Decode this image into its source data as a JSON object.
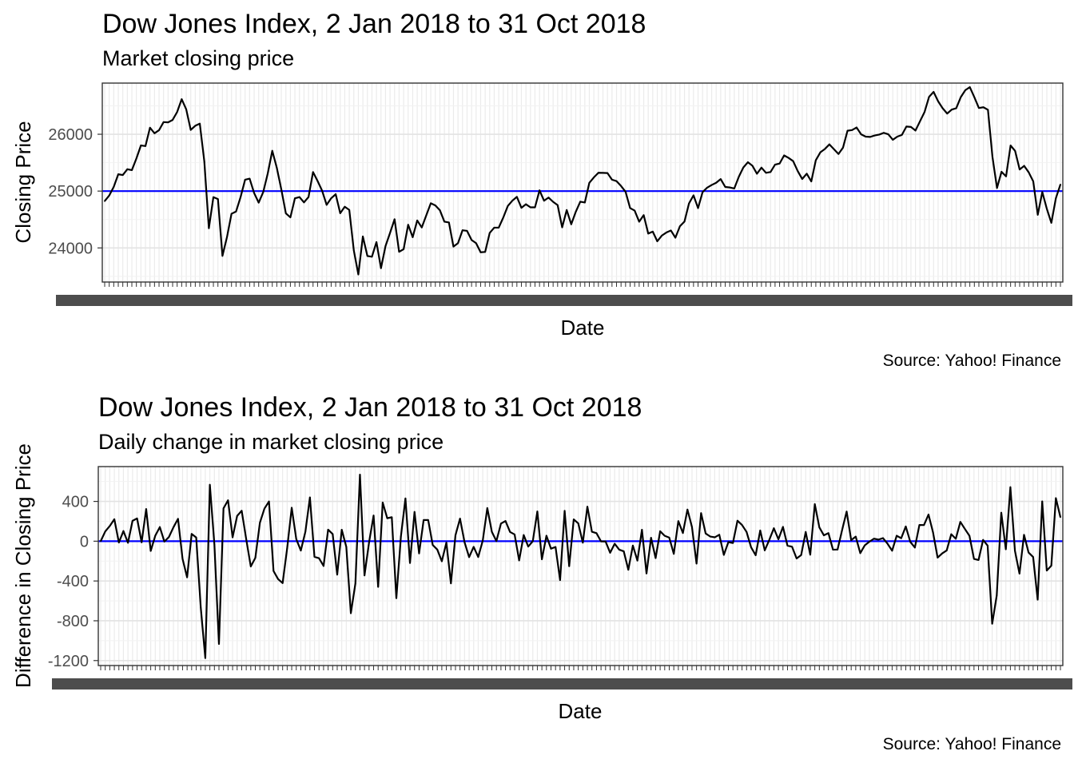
{
  "chart_data": [
    {
      "type": "line",
      "title": "Dow Jones Index, 2 Jan 2018 to 31 Oct 2018",
      "subtitle": "Market closing price",
      "xlabel": "Date",
      "ylabel": "Closing Price",
      "caption": "Source: Yahoo! Finance",
      "ylim": [
        23400,
        26900
      ],
      "yticks": [
        24000,
        25000,
        26000
      ],
      "reference_line": {
        "value": 25000,
        "color": "#0000ff"
      },
      "line_color": "#000000",
      "grid": true,
      "series": [
        {
          "values": [
            24824,
            24922,
            25075,
            25296,
            25283,
            25385,
            25369,
            25574,
            25803,
            25792,
            26115,
            26017,
            26072,
            26214,
            26210,
            26252,
            26392,
            26617,
            26439,
            26076,
            26149,
            26186,
            25520,
            24346,
            24893,
            24860,
            23860,
            24190,
            24601,
            24640,
            24894,
            25200,
            25219,
            24965,
            24797,
            24982,
            25310,
            25709,
            25410,
            25029,
            24608,
            24538,
            24874,
            24895,
            24801,
            24895,
            25335,
            25178,
            25007,
            24758,
            24874,
            24946,
            24610,
            24725,
            24668,
            23958,
            23533,
            24202,
            23858,
            23845,
            24103,
            23644,
            24033,
            24264,
            24505,
            23932,
            23978,
            24408,
            24189,
            24483,
            24360,
            24573,
            24786,
            24748,
            24664,
            24462,
            24448,
            24024,
            24084,
            24311,
            24300,
            24140,
            24083,
            23924,
            23930,
            24263,
            24357,
            24358,
            24535,
            24738,
            24831,
            24899,
            24706,
            24768,
            24714,
            24714,
            25013,
            24831,
            24886,
            24811,
            24753,
            24362,
            24667,
            24416,
            24635,
            24814,
            24799,
            25146,
            25241,
            25322,
            25320,
            25317,
            25201,
            25175,
            25090,
            24988,
            24701,
            24657,
            24462,
            24577,
            24253,
            24287,
            24117,
            24217,
            24271,
            24307,
            24180,
            24382,
            24464,
            24783,
            24925,
            24700,
            24982,
            25060,
            25107,
            25146,
            25211,
            25073,
            25064,
            25046,
            25252,
            25415,
            25508,
            25446,
            25305,
            25413,
            25321,
            25335,
            25465,
            25484,
            25628,
            25583,
            25527,
            25353,
            25213,
            25306,
            25170,
            25543,
            25682,
            25741,
            25822,
            25737,
            25653,
            25764,
            26062,
            26073,
            26119,
            25999,
            25958,
            25953,
            25978,
            25994,
            26025,
            25999,
            25903,
            25958,
            25988,
            26136,
            26129,
            26065,
            26228,
            26390,
            26658,
            26745,
            26580,
            26457,
            26364,
            26434,
            26458,
            26652,
            26775,
            26829,
            26651,
            26462,
            26475,
            26430,
            25600,
            25054,
            25340,
            25259,
            25802,
            25706,
            25380,
            25444,
            25330,
            25171,
            24583,
            24983,
            24688,
            24442,
            24875,
            25116
          ]
        }
      ]
    },
    {
      "type": "line",
      "title": "Dow Jones Index, 2 Jan 2018 to 31 Oct 2018",
      "subtitle": "Daily change in market closing price",
      "xlabel": "Date",
      "ylabel": "Difference in Closing Price",
      "caption": "Source: Yahoo! Finance",
      "ylim": [
        -1250,
        750
      ],
      "yticks": [
        -1200,
        -800,
        -400,
        0,
        400
      ],
      "reference_line": {
        "value": 0,
        "color": "#0000ff"
      },
      "line_color": "#000000",
      "grid": true,
      "series": [
        {
          "values": [
            0,
            98,
            153,
            221,
            -13,
            102,
            -16,
            205,
            229,
            -11,
            323,
            -98,
            55,
            142,
            -4,
            42,
            140,
            225,
            -178,
            -363,
            73,
            37,
            -666,
            -1175,
            567,
            -33,
            -1033,
            330,
            411,
            39,
            254,
            306,
            19,
            -254,
            -168,
            185,
            328,
            399,
            -299,
            -381,
            -421,
            -70,
            336,
            21,
            -94,
            94,
            440,
            -157,
            -171,
            -249,
            116,
            72,
            -336,
            115,
            -57,
            -724,
            -425,
            669,
            -344,
            -13,
            258,
            -459,
            389,
            231,
            241,
            -573,
            46,
            430,
            -219,
            294,
            -123,
            213,
            213,
            -38,
            -84,
            -202,
            -14,
            -424,
            60,
            227,
            -11,
            -160,
            -57,
            -159,
            6,
            333,
            94,
            1,
            177,
            203,
            93,
            68,
            -193,
            62,
            -54,
            0,
            299,
            -182,
            55,
            -75,
            -58,
            -391,
            305,
            -251,
            219,
            179,
            -15,
            347,
            95,
            81,
            -2,
            -3,
            -116,
            -26,
            -85,
            -102,
            -287,
            -44,
            -195,
            115,
            -324,
            34,
            -170,
            100,
            54,
            36,
            -127,
            202,
            82,
            318,
            142,
            -225,
            282,
            78,
            47,
            39,
            65,
            -138,
            -9,
            -18,
            206,
            163,
            93,
            -62,
            -141,
            108,
            -92,
            14,
            130,
            19,
            144,
            -45,
            -56,
            -174,
            -140,
            93,
            -136,
            373,
            139,
            59,
            81,
            -85,
            -84,
            111,
            298,
            11,
            46,
            -120,
            -41,
            -5,
            25,
            16,
            31,
            -26,
            -96,
            55,
            30,
            148,
            -7,
            -64,
            163,
            162,
            268,
            87,
            -165,
            -123,
            -93,
            70,
            24,
            194,
            123,
            54,
            -178,
            -189,
            13,
            -45,
            -830,
            -546,
            286,
            -81,
            543,
            -96,
            -326,
            64,
            -114,
            -159,
            -588,
            400,
            -295,
            -246,
            433,
            241
          ]
        }
      ]
    }
  ]
}
